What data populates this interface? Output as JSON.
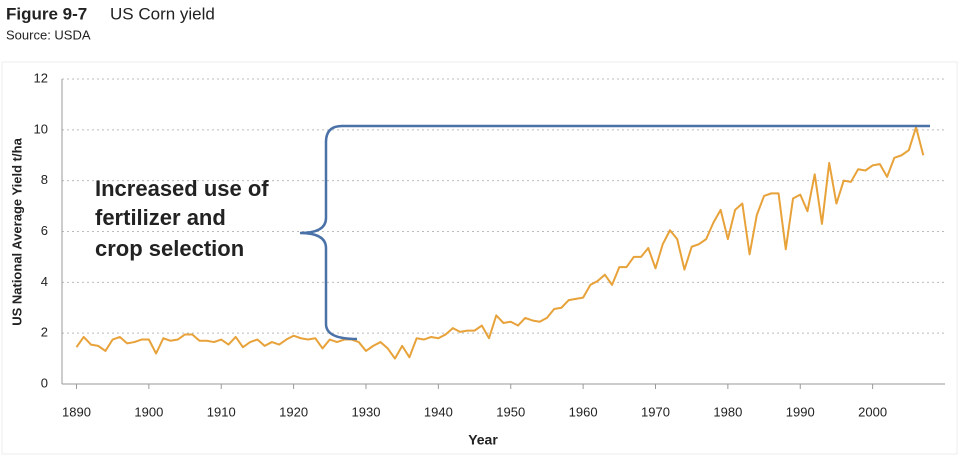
{
  "chart_data": {
    "type": "line",
    "figure_label": "Figure 9-7",
    "title": "US Corn yield",
    "subtitle": "Source: USDA",
    "x_label": "Year",
    "y_label": "US National Average Yield t/ha",
    "annotation": [
      "Increased use of",
      "fertilizer and",
      "crop selection"
    ],
    "x": [
      1890,
      1891,
      1892,
      1893,
      1894,
      1895,
      1896,
      1897,
      1898,
      1899,
      1900,
      1901,
      1902,
      1903,
      1904,
      1905,
      1906,
      1907,
      1908,
      1909,
      1910,
      1911,
      1912,
      1913,
      1914,
      1915,
      1916,
      1917,
      1918,
      1919,
      1920,
      1921,
      1922,
      1923,
      1924,
      1925,
      1926,
      1927,
      1928,
      1929,
      1930,
      1931,
      1932,
      1933,
      1934,
      1935,
      1936,
      1937,
      1938,
      1939,
      1940,
      1941,
      1942,
      1943,
      1944,
      1945,
      1946,
      1947,
      1948,
      1949,
      1950,
      1951,
      1952,
      1953,
      1954,
      1955,
      1956,
      1957,
      1958,
      1959,
      1960,
      1961,
      1962,
      1963,
      1964,
      1965,
      1966,
      1967,
      1968,
      1969,
      1970,
      1971,
      1972,
      1973,
      1974,
      1975,
      1976,
      1977,
      1978,
      1979,
      1980,
      1981,
      1982,
      1983,
      1984,
      1985,
      1986,
      1987,
      1988,
      1989,
      1990,
      1991,
      1992,
      1993,
      1994,
      1995,
      1996,
      1997,
      1998,
      1999,
      2000,
      2001,
      2002,
      2003,
      2004,
      2005,
      2006,
      2007
    ],
    "series": [
      {
        "name": "US corn yield",
        "color": "#e8a23a",
        "values": [
          1.45,
          1.85,
          1.55,
          1.5,
          1.3,
          1.75,
          1.85,
          1.6,
          1.65,
          1.75,
          1.75,
          1.2,
          1.8,
          1.7,
          1.75,
          1.95,
          1.95,
          1.7,
          1.7,
          1.65,
          1.75,
          1.55,
          1.85,
          1.45,
          1.65,
          1.75,
          1.5,
          1.65,
          1.55,
          1.75,
          1.9,
          1.8,
          1.75,
          1.8,
          1.4,
          1.75,
          1.65,
          1.75,
          1.75,
          1.65,
          1.3,
          1.5,
          1.65,
          1.4,
          1.0,
          1.5,
          1.05,
          1.8,
          1.75,
          1.85,
          1.8,
          1.95,
          2.2,
          2.05,
          2.1,
          2.1,
          2.3,
          1.8,
          2.7,
          2.4,
          2.45,
          2.3,
          2.6,
          2.5,
          2.45,
          2.6,
          2.95,
          3.0,
          3.3,
          3.35,
          3.4,
          3.9,
          4.05,
          4.3,
          3.9,
          4.6,
          4.6,
          5.0,
          5.0,
          5.35,
          4.55,
          5.5,
          6.05,
          5.7,
          4.5,
          5.4,
          5.5,
          5.7,
          6.35,
          6.85,
          5.7,
          6.85,
          7.1,
          5.1,
          6.65,
          7.4,
          7.5,
          7.5,
          5.3,
          7.3,
          7.45,
          6.8,
          8.25,
          6.3,
          8.7,
          7.1,
          8.0,
          7.95,
          8.45,
          8.4,
          8.6,
          8.65,
          8.15,
          8.9,
          9.0,
          9.2,
          10.1,
          9.0
        ]
      }
    ],
    "xlim": [
      1888,
      2010
    ],
    "xticks": [
      1890,
      1900,
      1910,
      1920,
      1930,
      1940,
      1950,
      1960,
      1970,
      1980,
      1990,
      2000
    ],
    "ylim": [
      0,
      12
    ],
    "yticks": [
      0,
      2,
      4,
      6,
      8,
      10,
      12
    ],
    "grid": true
  }
}
